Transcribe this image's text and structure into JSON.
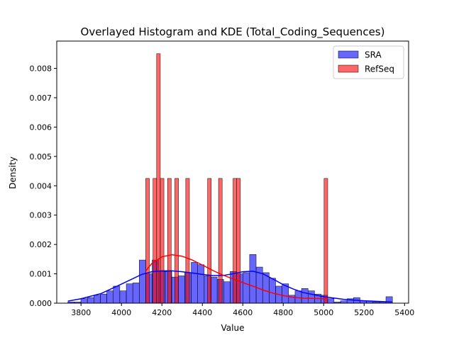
{
  "chart_data": {
    "type": "histogram",
    "title": "Overlayed Histogram and KDE (Total_Coding_Sequences)",
    "xlabel": "Value",
    "ylabel": "Density",
    "xlim": [
      3680,
      5420
    ],
    "ylim": [
      0,
      0.0085
    ],
    "xticks": [
      3800,
      4000,
      4200,
      4400,
      4600,
      4800,
      5000,
      5200,
      5400
    ],
    "yticks": [
      0.0,
      0.001,
      0.002,
      0.003,
      0.004,
      0.005,
      0.006,
      0.007,
      0.008
    ],
    "grid": false,
    "legend_position": "top-right",
    "series": [
      {
        "name": "SRA",
        "color": "#0000ff",
        "bin_edges": [
          3735.0,
          3767.1,
          3799.2,
          3831.3,
          3863.4,
          3895.5,
          3927.6,
          3959.7,
          3991.8,
          4023.9,
          4056.0,
          4088.1,
          4120.2,
          4152.3,
          4184.4,
          4216.5,
          4248.6,
          4280.7,
          4312.8,
          4344.9,
          4377.0,
          4409.1,
          4441.2,
          4473.3,
          4505.4,
          4537.5,
          4569.6,
          4601.7,
          4633.8,
          4665.9,
          4698.0,
          4730.1,
          4762.2,
          4794.3,
          4826.4,
          4858.5,
          4890.6,
          4922.7,
          4954.8,
          4986.9,
          5019.0,
          5051.1,
          5083.2,
          5115.3,
          5147.4,
          5179.5,
          5211.6,
          5243.7,
          5275.8,
          5307.9,
          5340.0
        ],
        "densities": [
          4e-05,
          4e-05,
          0.00015,
          0.00019,
          0.00027,
          0.00031,
          0.00042,
          0.00058,
          0.00042,
          0.00066,
          0.00069,
          0.00147,
          0.001,
          0.00147,
          0.00108,
          0.00108,
          0.00089,
          0.00093,
          0.00104,
          0.00139,
          0.00131,
          0.00093,
          0.00089,
          0.00081,
          0.00073,
          0.00108,
          0.001,
          0.00104,
          0.00166,
          0.00123,
          0.00104,
          0.00085,
          0.00058,
          0.00066,
          0.00027,
          0.00042,
          0.0005,
          0.00042,
          0.00031,
          0.00027,
          0.00015,
          4e-05,
          8e-05,
          0.00015,
          0.00019,
          8e-05,
          8e-05,
          4e-05,
          4e-05,
          0.00022
        ],
        "kde": {
          "x": [
            3735,
            3800,
            3900,
            4000,
            4100,
            4150,
            4200,
            4250,
            4300,
            4350,
            4400,
            4450,
            4500,
            4550,
            4600,
            4650,
            4700,
            4750,
            4800,
            4850,
            4900,
            5000,
            5100,
            5200,
            5300,
            5340
          ],
          "y": [
            7e-05,
            0.00015,
            0.00033,
            0.00065,
            0.00098,
            0.00107,
            0.0011,
            0.0011,
            0.00107,
            0.00103,
            0.00098,
            0.00094,
            0.00094,
            0.001,
            0.00107,
            0.00109,
            0.001,
            0.00082,
            0.00063,
            0.00048,
            0.00036,
            0.00022,
            0.00013,
            8e-05,
            5e-05,
            4e-05
          ]
        }
      },
      {
        "name": "RefSeq",
        "color": "#ff0000",
        "bin_edges": [
          4120.0,
          4138.0,
          4156.0,
          4174.0,
          4192.0,
          4210.0,
          4228.0,
          4246.0,
          4264.0,
          4282.0,
          4300.0,
          4318.0,
          4336.0,
          4354.0,
          4372.0,
          4390.0,
          4408.0,
          4426.0,
          4444.0,
          4462.0,
          4480.0,
          4498.0,
          4516.0,
          4534.0,
          4552.0,
          4570.0,
          4588.0,
          4606.0,
          4624.0,
          4642.0,
          4660.0,
          4678.0,
          4696.0,
          4714.0,
          4732.0,
          4750.0,
          4768.0,
          4786.0,
          4804.0,
          4822.0,
          4840.0,
          4858.0,
          4876.0,
          4894.0,
          4912.0,
          4930.0,
          4948.0,
          4966.0,
          4984.0,
          5002.0,
          5020.0
        ],
        "densities": [
          0.00425,
          0,
          0.00425,
          0.0085,
          0.00425,
          0,
          0.00425,
          0,
          0.00425,
          0,
          0,
          0.00425,
          0,
          0,
          0,
          0,
          0,
          0.00425,
          0,
          0,
          0.00425,
          0,
          0,
          0,
          0.00425,
          0.00425,
          0,
          0,
          0,
          0,
          0,
          0,
          0,
          0,
          0,
          0,
          0,
          0,
          0,
          0,
          0,
          0,
          0,
          0,
          0,
          0,
          0,
          0,
          0,
          0.00425
        ],
        "kde": {
          "x": [
            4120,
            4150,
            4200,
            4250,
            4300,
            4350,
            4400,
            4450,
            4500,
            4550,
            4600,
            4650,
            4700,
            4750,
            4800,
            4850,
            4900,
            4950,
            5000,
            5020
          ],
          "y": [
            0.0011,
            0.00135,
            0.00158,
            0.00165,
            0.0016,
            0.00147,
            0.0013,
            0.00112,
            0.00096,
            0.00083,
            0.0007,
            0.00058,
            0.00045,
            0.00034,
            0.00026,
            0.0002,
            0.00017,
            0.00016,
            0.00015,
            0.00015
          ]
        }
      }
    ]
  }
}
